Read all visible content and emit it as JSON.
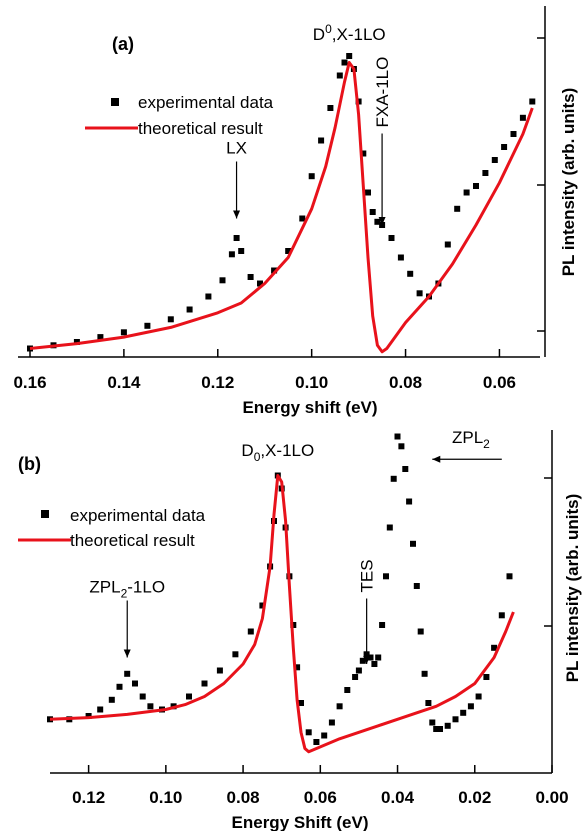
{
  "chart_data": [
    {
      "type": "scatter",
      "panel_label": "(a)",
      "xlabel": "Energy shift (eV)",
      "ylabel": "PL intensity (arb. units)",
      "xlim": [
        0.16,
        0.052
      ],
      "ylim": [
        0,
        1
      ],
      "x_reversed": true,
      "xticks": [
        0.16,
        0.14,
        0.12,
        0.1,
        0.08,
        0.06
      ],
      "xtick_labels": [
        "0.16",
        "0.14",
        "0.12",
        "0.10",
        "0.08",
        "0.06"
      ],
      "legend_position": "top-left",
      "legend": [
        {
          "label": "experimental data",
          "marker": "square",
          "color": "#000000"
        },
        {
          "label": "theoretical result",
          "marker": "line",
          "color": "#e8121b"
        }
      ],
      "annotations": [
        {
          "text": "D",
          "sup": "0",
          "after": ",X-1LO",
          "x": 0.092,
          "y": 0.97,
          "arrow": false
        },
        {
          "text": "LX",
          "x": 0.116,
          "y": 0.62,
          "arrow_to": [
            0.116,
            0.42
          ]
        },
        {
          "text": "FXA-1LO",
          "x": 0.085,
          "y": 0.7,
          "arrow_to": [
            0.085,
            0.4
          ],
          "rotate": -90
        }
      ],
      "series": [
        {
          "name": "experimental data",
          "style": "scatter",
          "color": "#000000",
          "x": [
            0.16,
            0.155,
            0.15,
            0.145,
            0.14,
            0.135,
            0.13,
            0.126,
            0.122,
            0.119,
            0.117,
            0.116,
            0.115,
            0.113,
            0.111,
            0.108,
            0.105,
            0.102,
            0.1,
            0.098,
            0.096,
            0.094,
            0.093,
            0.092,
            0.091,
            0.09,
            0.089,
            0.088,
            0.087,
            0.086,
            0.085,
            0.083,
            0.081,
            0.079,
            0.077,
            0.075,
            0.073,
            0.071,
            0.069,
            0.067,
            0.065,
            0.063,
            0.061,
            0.059,
            0.057,
            0.055,
            0.053
          ],
          "y": [
            0.02,
            0.03,
            0.04,
            0.055,
            0.07,
            0.09,
            0.11,
            0.14,
            0.18,
            0.23,
            0.31,
            0.36,
            0.32,
            0.24,
            0.22,
            0.26,
            0.32,
            0.42,
            0.55,
            0.66,
            0.76,
            0.86,
            0.9,
            0.92,
            0.88,
            0.78,
            0.62,
            0.5,
            0.44,
            0.41,
            0.4,
            0.36,
            0.3,
            0.25,
            0.19,
            0.18,
            0.22,
            0.34,
            0.45,
            0.5,
            0.52,
            0.56,
            0.6,
            0.64,
            0.68,
            0.73,
            0.78
          ]
        },
        {
          "name": "theoretical result",
          "style": "line",
          "color": "#e8121b",
          "x": [
            0.16,
            0.15,
            0.14,
            0.13,
            0.12,
            0.115,
            0.11,
            0.105,
            0.1,
            0.097,
            0.095,
            0.093,
            0.092,
            0.091,
            0.09,
            0.089,
            0.088,
            0.087,
            0.086,
            0.085,
            0.084,
            0.082,
            0.08,
            0.075,
            0.07,
            0.065,
            0.06,
            0.055,
            0.053
          ],
          "y": [
            0.02,
            0.035,
            0.055,
            0.085,
            0.13,
            0.16,
            0.22,
            0.3,
            0.45,
            0.58,
            0.7,
            0.84,
            0.9,
            0.88,
            0.74,
            0.52,
            0.3,
            0.12,
            0.03,
            0.01,
            0.02,
            0.06,
            0.1,
            0.18,
            0.28,
            0.4,
            0.53,
            0.68,
            0.76
          ]
        }
      ]
    },
    {
      "type": "scatter",
      "panel_label": "(b)",
      "xlabel": "Energy Shift (eV)",
      "ylabel": "PL intensity (arb. units)",
      "xlim": [
        0.13,
        0.0
      ],
      "ylim": [
        0,
        1
      ],
      "x_reversed": true,
      "xticks": [
        0.12,
        0.1,
        0.08,
        0.06,
        0.04,
        0.02,
        0.0
      ],
      "xtick_labels": [
        "0.12",
        "0.10",
        "0.08",
        "0.06",
        "0.04",
        "0.02",
        "0.00"
      ],
      "legend_position": "top-left",
      "legend": [
        {
          "label": "experimental data",
          "marker": "square",
          "color": "#000000"
        },
        {
          "label": "theoretical result",
          "marker": "line",
          "color": "#e8121b"
        }
      ],
      "annotations": [
        {
          "text": "D",
          "sub": "0",
          "after": ",X-1LO",
          "x": 0.071,
          "y": 0.92,
          "arrow": false
        },
        {
          "text": "ZPL",
          "sub": "2",
          "after": "-1LO",
          "x": 0.11,
          "y": 0.5,
          "arrow_to": [
            0.11,
            0.3
          ]
        },
        {
          "text": "TES",
          "x": 0.048,
          "y": 0.5,
          "arrow_to": [
            0.048,
            0.28
          ],
          "rotate": -90
        },
        {
          "text": "ZPL",
          "sub": "2",
          "x": 0.021,
          "y": 0.96,
          "arrow_to": [
            0.031,
            0.91
          ],
          "arrow_from": [
            0.013,
            0.91
          ]
        }
      ],
      "series": [
        {
          "name": "experimental data",
          "style": "scatter",
          "color": "#000000",
          "x": [
            0.13,
            0.125,
            0.12,
            0.117,
            0.114,
            0.112,
            0.11,
            0.108,
            0.106,
            0.104,
            0.101,
            0.098,
            0.094,
            0.09,
            0.086,
            0.082,
            0.078,
            0.075,
            0.073,
            0.072,
            0.071,
            0.07,
            0.069,
            0.068,
            0.067,
            0.066,
            0.065,
            0.063,
            0.061,
            0.059,
            0.057,
            0.055,
            0.053,
            0.051,
            0.05,
            0.049,
            0.048,
            0.047,
            0.046,
            0.045,
            0.044,
            0.043,
            0.042,
            0.041,
            0.04,
            0.039,
            0.038,
            0.037,
            0.036,
            0.035,
            0.034,
            0.033,
            0.032,
            0.031,
            0.03,
            0.029,
            0.027,
            0.025,
            0.023,
            0.021,
            0.019,
            0.017,
            0.015,
            0.013,
            0.011
          ],
          "y": [
            0.11,
            0.11,
            0.12,
            0.14,
            0.17,
            0.21,
            0.25,
            0.22,
            0.18,
            0.15,
            0.14,
            0.15,
            0.18,
            0.22,
            0.26,
            0.31,
            0.38,
            0.46,
            0.58,
            0.72,
            0.86,
            0.82,
            0.7,
            0.55,
            0.4,
            0.27,
            0.16,
            0.07,
            0.04,
            0.06,
            0.1,
            0.15,
            0.2,
            0.24,
            0.26,
            0.29,
            0.31,
            0.3,
            0.28,
            0.3,
            0.4,
            0.55,
            0.7,
            0.85,
            0.98,
            0.95,
            0.88,
            0.78,
            0.65,
            0.52,
            0.38,
            0.25,
            0.16,
            0.1,
            0.08,
            0.08,
            0.09,
            0.11,
            0.13,
            0.15,
            0.18,
            0.24,
            0.33,
            0.43,
            0.55
          ]
        },
        {
          "name": "theoretical result",
          "style": "line",
          "color": "#e8121b",
          "x": [
            0.13,
            0.12,
            0.11,
            0.1,
            0.095,
            0.09,
            0.085,
            0.08,
            0.077,
            0.075,
            0.073,
            0.072,
            0.071,
            0.07,
            0.069,
            0.068,
            0.067,
            0.066,
            0.065,
            0.064,
            0.063,
            0.062,
            0.06,
            0.055,
            0.05,
            0.045,
            0.04,
            0.035,
            0.03,
            0.025,
            0.02,
            0.015,
            0.012,
            0.01
          ],
          "y": [
            0.11,
            0.115,
            0.125,
            0.14,
            0.155,
            0.18,
            0.22,
            0.28,
            0.34,
            0.42,
            0.58,
            0.74,
            0.86,
            0.84,
            0.72,
            0.52,
            0.33,
            0.17,
            0.07,
            0.02,
            0.01,
            0.015,
            0.025,
            0.05,
            0.07,
            0.09,
            0.11,
            0.13,
            0.15,
            0.18,
            0.22,
            0.3,
            0.38,
            0.44
          ]
        }
      ]
    }
  ]
}
